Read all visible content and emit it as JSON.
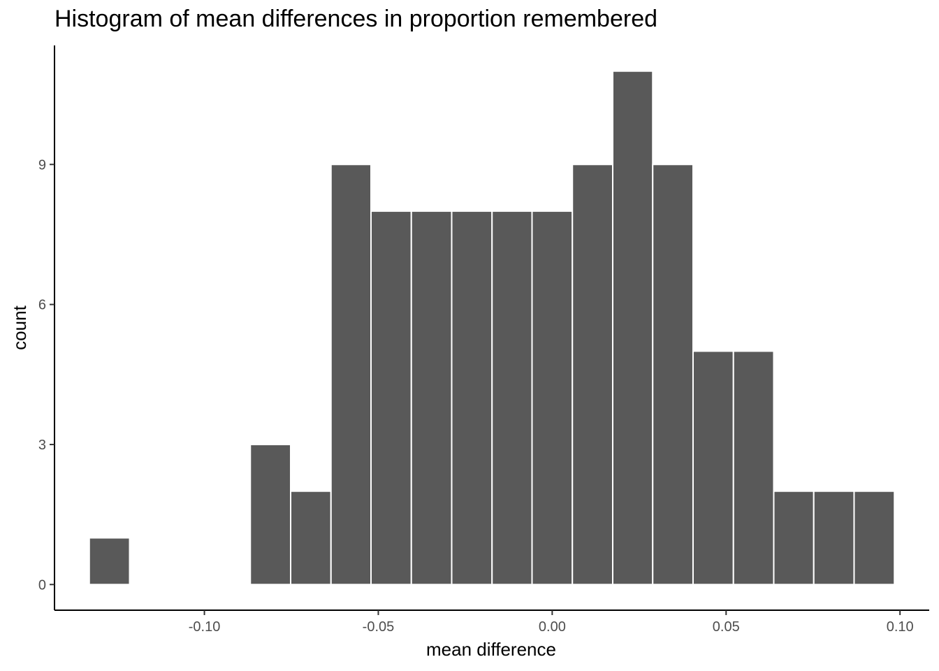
{
  "chart_data": {
    "type": "histogram",
    "title": "Histogram of mean differences in proportion remembered",
    "xlabel": "mean difference",
    "ylabel": "count",
    "bin_width": 0.011579,
    "bins": [
      {
        "x_start": -0.1331,
        "x_end": -0.1215,
        "count": 1
      },
      {
        "x_start": -0.1215,
        "x_end": -0.1099,
        "count": 0
      },
      {
        "x_start": -0.1099,
        "x_end": -0.0984,
        "count": 0
      },
      {
        "x_start": -0.0984,
        "x_end": -0.0868,
        "count": 0
      },
      {
        "x_start": -0.0868,
        "x_end": -0.0752,
        "count": 3
      },
      {
        "x_start": -0.0752,
        "x_end": -0.0636,
        "count": 2
      },
      {
        "x_start": -0.0636,
        "x_end": -0.0521,
        "count": 9
      },
      {
        "x_start": -0.0521,
        "x_end": -0.0405,
        "count": 8
      },
      {
        "x_start": -0.0405,
        "x_end": -0.0289,
        "count": 8
      },
      {
        "x_start": -0.0289,
        "x_end": -0.0173,
        "count": 8
      },
      {
        "x_start": -0.0173,
        "x_end": -0.0058,
        "count": 8
      },
      {
        "x_start": -0.0058,
        "x_end": 0.0058,
        "count": 8
      },
      {
        "x_start": 0.0058,
        "x_end": 0.0174,
        "count": 9
      },
      {
        "x_start": 0.0174,
        "x_end": 0.0289,
        "count": 11
      },
      {
        "x_start": 0.0289,
        "x_end": 0.0405,
        "count": 9
      },
      {
        "x_start": 0.0405,
        "x_end": 0.0521,
        "count": 5
      },
      {
        "x_start": 0.0521,
        "x_end": 0.0637,
        "count": 5
      },
      {
        "x_start": 0.0637,
        "x_end": 0.0752,
        "count": 2
      },
      {
        "x_start": 0.0752,
        "x_end": 0.0868,
        "count": 2
      },
      {
        "x_start": 0.0868,
        "x_end": 0.0984,
        "count": 2
      }
    ],
    "xlim": [
      -0.1431,
      0.1084
    ],
    "ylim": [
      -0.55,
      11.55
    ],
    "x_ticks": [
      -0.1,
      -0.05,
      0.0,
      0.05,
      0.1
    ],
    "x_tick_labels": [
      "-0.10",
      "-0.05",
      "0.00",
      "0.05",
      "0.10"
    ],
    "y_ticks": [
      0,
      3,
      6,
      9
    ],
    "y_tick_labels": [
      "0",
      "3",
      "6",
      "9"
    ],
    "grid": false,
    "legend": "none",
    "colors": {
      "bar_fill": "#595959",
      "bar_outline": "#ffffff",
      "axis_line": "#000000",
      "tick_text": "#4d4d4d",
      "background": "#ffffff"
    }
  }
}
